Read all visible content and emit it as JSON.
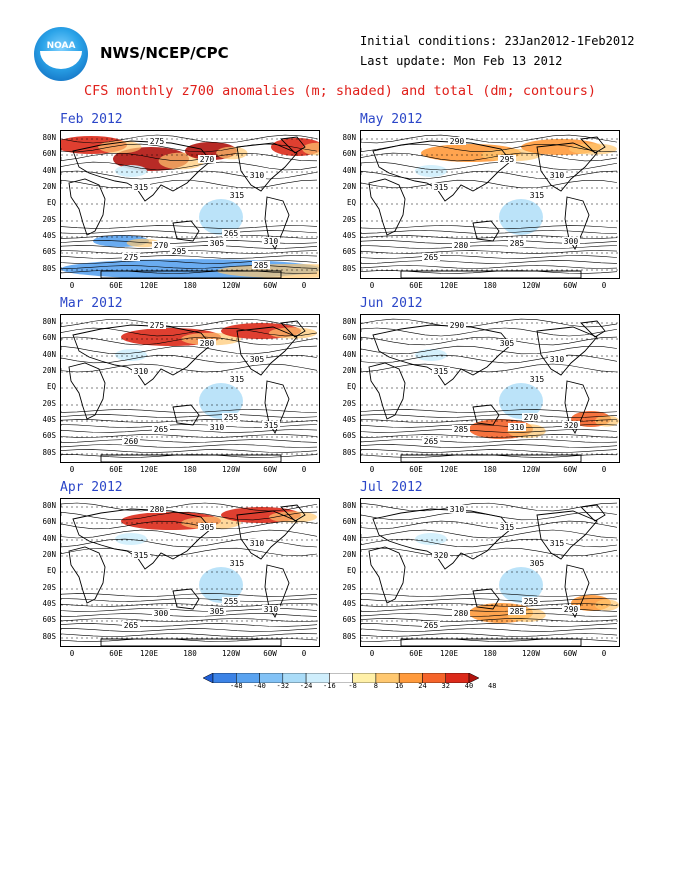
{
  "header": {
    "agency": "NWS/NCEP/CPC",
    "logo_text": "NOAA",
    "initial_conditions": "Initial conditions: 23Jan2012-1Feb2012",
    "last_update": "Last update: Mon Feb 13 2012",
    "title": "CFS monthly z700 anomalies (m; shaded) and total (dm; contours)"
  },
  "axes": {
    "lat_ticks": [
      "80N",
      "60N",
      "40N",
      "20N",
      "EQ",
      "20S",
      "40S",
      "60S",
      "80S"
    ],
    "lon_ticks": [
      "0",
      "60E",
      "120E",
      "180",
      "120W",
      "60W",
      "0"
    ]
  },
  "colorbar": {
    "labels": [
      "-48",
      "-40",
      "-32",
      "-24",
      "-16",
      "-8",
      "8",
      "16",
      "24",
      "32",
      "40",
      "48"
    ],
    "colors": [
      "#1f5fd6",
      "#3c83e6",
      "#5aa3f0",
      "#82c2f6",
      "#aadcf8",
      "#cfeefc",
      "#ffffff",
      "#fff0a8",
      "#ffc870",
      "#ff9a3c",
      "#f5642a",
      "#dc2a1a",
      "#b0140e"
    ]
  },
  "panels": [
    {
      "month": "Feb 2012",
      "contour_labels": [
        "275",
        "270",
        "310",
        "315",
        "315",
        "310",
        "305",
        "270",
        "275",
        "265",
        "295",
        "285"
      ],
      "anoms": [
        {
          "color": "#b0140e",
          "region": "north-pacific"
        },
        {
          "color": "#dc2a1a",
          "region": "north-atlantic"
        },
        {
          "color": "#5aa3f0",
          "region": "south-pole"
        }
      ]
    },
    {
      "month": "May 2012",
      "contour_labels": [
        "290",
        "295",
        "310",
        "315",
        "315",
        "300",
        "285",
        "280",
        "265"
      ],
      "anoms": [
        {
          "color": "#ff9a3c",
          "region": "north"
        }
      ]
    },
    {
      "month": "Mar 2012",
      "contour_labels": [
        "275",
        "280",
        "305",
        "310",
        "315",
        "315",
        "310",
        "265",
        "260",
        "255"
      ],
      "anoms": [
        {
          "color": "#dc2a1a",
          "region": "north"
        }
      ]
    },
    {
      "month": "Jun 2012",
      "contour_labels": [
        "290",
        "305",
        "310",
        "315",
        "315",
        "320",
        "310",
        "285",
        "265",
        "270"
      ],
      "anoms": [
        {
          "color": "#f5642a",
          "region": "south"
        }
      ]
    },
    {
      "month": "Apr 2012",
      "contour_labels": [
        "280",
        "305",
        "310",
        "315",
        "315",
        "310",
        "305",
        "300",
        "265",
        "255"
      ],
      "anoms": [
        {
          "color": "#dc2a1a",
          "region": "north"
        }
      ]
    },
    {
      "month": "Jul 2012",
      "contour_labels": [
        "310",
        "315",
        "315",
        "320",
        "305",
        "290",
        "285",
        "280",
        "265",
        "255"
      ],
      "anoms": [
        {
          "color": "#ff9a3c",
          "region": "south"
        }
      ]
    }
  ]
}
